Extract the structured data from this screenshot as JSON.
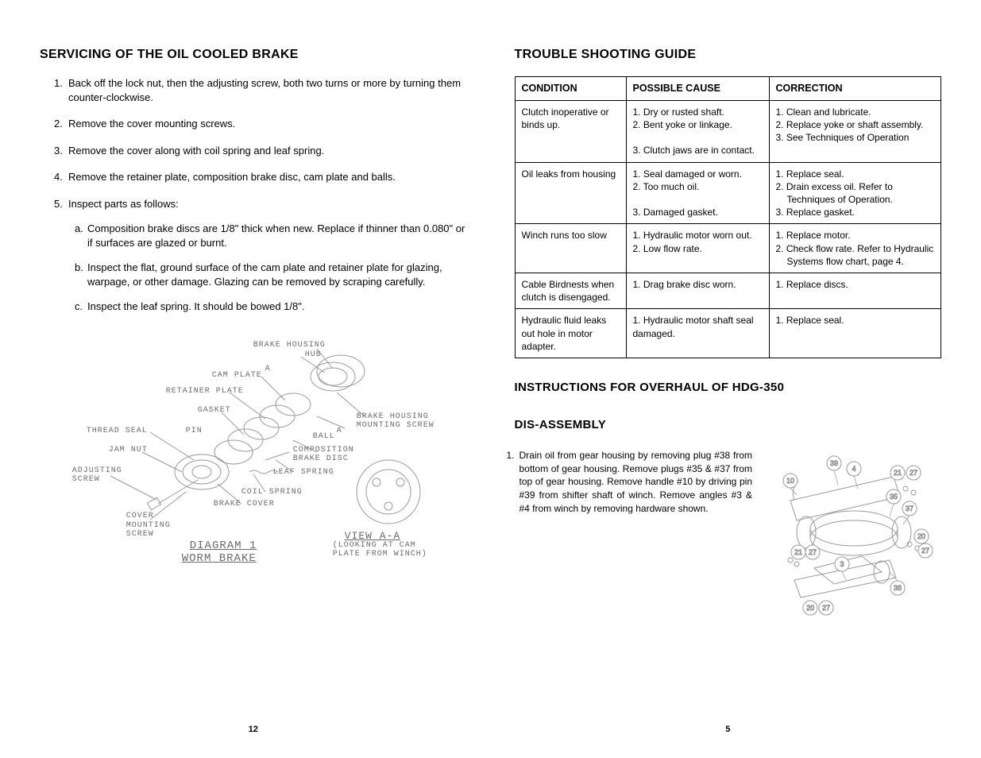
{
  "left": {
    "heading": "SERVICING OF THE OIL COOLED  BRAKE",
    "steps": [
      "Back off the lock nut, then the adjusting screw, both two turns or more by turning them counter-clockwise.",
      "Remove the cover mounting screws.",
      "Remove the cover along with coil spring and leaf spring.",
      "Remove the retainer plate, composition brake disc, cam plate and balls.",
      "Inspect parts as follows:"
    ],
    "substeps": [
      {
        "label": "a.",
        "text": "Composition brake discs are 1/8\" thick when new.  Replace if thinner than 0.080\" or if surfaces are glazed or burnt."
      },
      {
        "label": "b.",
        "text": "Inspect the flat, ground surface of the cam plate and retainer plate for glazing, warpage, or other damage.  Glazing can be removed by scraping carefully."
      },
      {
        "label": "c.",
        "text": "Inspect the leaf spring.  It should be bowed 1/8\"."
      }
    ],
    "diagram_labels": {
      "brake_housing": "BRAKE HOUSING",
      "hub": "HUB",
      "cam_plate": "CAM PLATE",
      "retainer_plate": "RETAINER PLATE",
      "gasket": "GASKET",
      "thread_seal": "THREAD SEAL",
      "pin": "PIN",
      "jam_nut": "JAM NUT",
      "adjusting_screw": "ADJUSTING\nSCREW",
      "cover": "COVER",
      "cover_mounting_screw": "MOUNTING\nSCREW",
      "brake_cover": "BRAKE COVER",
      "coil_spring": "COIL SPRING",
      "leaf_spring": "LEAF SPRING",
      "composition_brake_disc": "COMPOSITION\nBRAKE DISC",
      "ball": "BALL",
      "brake_housing_mounting_screw": "BRAKE HOUSING\nMOUNTING SCREW",
      "a_mark": "A",
      "diagram_title": "DIAGRAM 1",
      "worm_brake": "WORM BRAKE",
      "view_aa": "VIEW A-A",
      "view_aa_sub": "(LOOKING AT CAM\nPLATE FROM WINCH)"
    },
    "page_num": "12"
  },
  "right": {
    "heading": "TROUBLE SHOOTING GUIDE",
    "table": {
      "headers": [
        "CONDITION",
        "POSSIBLE CAUSE",
        "CORRECTION"
      ],
      "rows": [
        {
          "condition": "Clutch inoperative or binds up.",
          "cause": [
            "1. Dry or rusted shaft.",
            "2. Bent yoke or linkage.",
            "",
            "3. Clutch jaws are in contact."
          ],
          "correction": [
            "1. Clean and lubricate.",
            "2. Replace yoke or shaft assembly.",
            "3. See Techniques of Operation"
          ]
        },
        {
          "condition": "Oil leaks from housing",
          "cause": [
            "1. Seal damaged or worn.",
            "2. Too much oil.",
            "",
            "3.  Damaged gasket."
          ],
          "correction": [
            "1. Replace seal.",
            "2. Drain excess oil. Refer to Techniques of Operation.",
            "3. Replace gasket."
          ]
        },
        {
          "condition": "Winch runs too slow",
          "cause": [
            "1.  Hydraulic motor worn out.",
            "2.  Low flow rate."
          ],
          "correction": [
            "1. Replace motor.",
            "2. Check flow rate. Refer to Hydraulic Systems flow chart, page 4."
          ]
        },
        {
          "condition": "Cable Birdnests when clutch is disengaged.",
          "cause": [
            "1.  Drag brake disc worn."
          ],
          "correction": [
            "1. Replace discs."
          ]
        },
        {
          "condition": "Hydraulic fluid leaks out hole in motor adapter.",
          "cause": [
            "1.  Hydraulic motor shaft seal damaged."
          ],
          "correction": [
            "1. Replace seal."
          ]
        }
      ]
    },
    "overhaul_heading": "INSTRUCTIONS FOR OVERHAUL OF HDG-350",
    "disassembly_heading": "DIS-ASSEMBLY",
    "overhaul_step": "Drain oil from gear housing by removing plug #38 from bottom of gear housing.  Remove plugs #35 & #37 from top of gear housing.  Remove handle #10 by driving pin #39 from shifter shaft of winch.  Remove angles #3 & #4 from winch by removing hardware shown.",
    "overhaul_step_num": "1.",
    "diagram2_labels": [
      "39",
      "10",
      "4",
      "21",
      "27",
      "35",
      "37",
      "20",
      "27",
      "21",
      "27",
      "3",
      "38",
      "20",
      "27"
    ],
    "page_num": "5"
  },
  "colors": {
    "text": "#000000",
    "diagram_line": "#9a9a9a",
    "diagram_text": "#6a6a6a",
    "table_border": "#000000"
  }
}
